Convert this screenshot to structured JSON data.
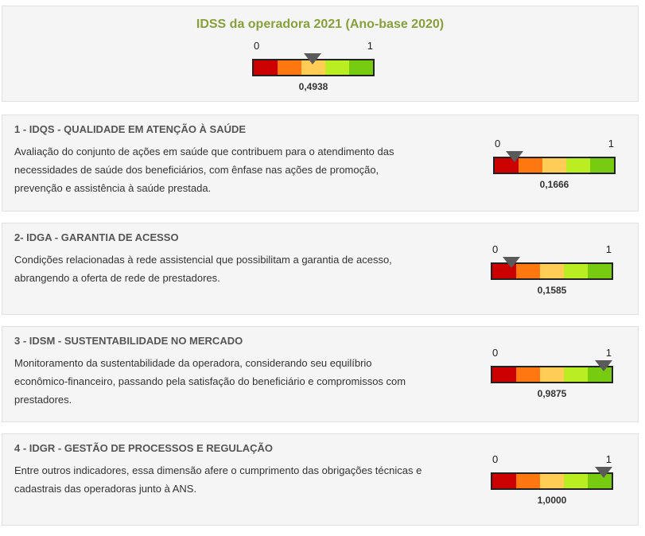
{
  "summary": {
    "title": "IDSS da operadora 2021 (Ano-base 2020)",
    "gauge": {
      "min_label": "0",
      "max_label": "1",
      "value": 0.4938,
      "value_label": "0,4938"
    }
  },
  "scale_colors": [
    "#cc0000",
    "#ff7711",
    "#ffcc55",
    "#bbee22",
    "#77cc11"
  ],
  "dimensions": [
    {
      "title": "1 - IDQS - QUALIDADE EM ATENÇÃO À SAÚDE",
      "description": "Avaliação do conjunto de ações em saúde que contribuem para o atendimento das necessidades de saúde dos beneficiários, com ênfase nas ações de promoção, prevenção e assistência à saúde prestada.",
      "gauge": {
        "min_label": "0",
        "max_label": "1",
        "value": 0.1666,
        "value_label": "0,1666"
      }
    },
    {
      "title": "2- IDGA - GARANTIA DE ACESSO",
      "description": "Condições relacionadas à rede assistencial que possibilitam a garantia de acesso, abrangendo a oferta de rede de prestadores.",
      "gauge": {
        "min_label": "0",
        "max_label": "1",
        "value": 0.1585,
        "value_label": "0,1585"
      }
    },
    {
      "title": "3 - IDSM - SUSTENTABILIDADE NO MERCADO",
      "description": "Monitoramento da sustentabilidade da operadora, considerando seu equilíbrio econômico-financeiro, passando pela satisfação do beneficiário e compromissos com prestadores.",
      "gauge": {
        "min_label": "0",
        "max_label": "1",
        "value": 0.9875,
        "value_label": "0,9875"
      }
    },
    {
      "title": "4 - IDGR - GESTÃO DE PROCESSOS E REGULAÇÃO",
      "description": "Entre outros indicadores, essa dimensão afere o cumprimento das obrigações técnicas e cadastrais das operadoras junto à ANS.",
      "gauge": {
        "min_label": "0",
        "max_label": "1",
        "value": 1.0,
        "value_label": "1,0000"
      }
    }
  ]
}
